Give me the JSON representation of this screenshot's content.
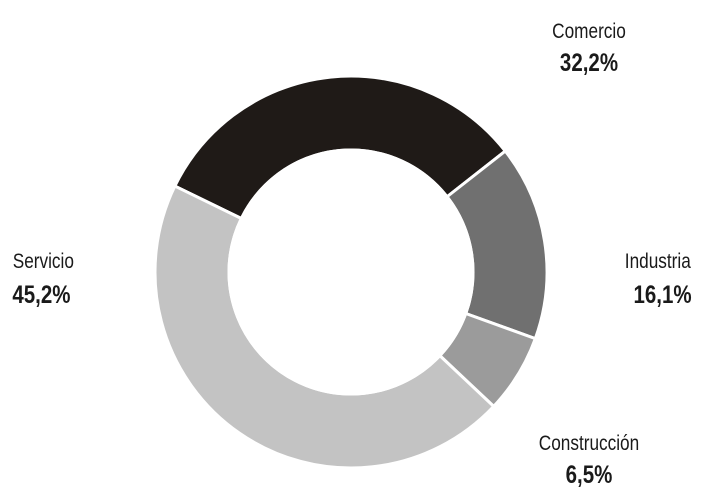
{
  "chart_data": {
    "type": "pie",
    "donut": true,
    "start_angle_deg": -154,
    "slices": [
      {
        "name": "Comercio",
        "value": 32.2,
        "label": "32,2%",
        "color": "#1f1a17",
        "label_anchor": "middle",
        "label_side": "top-right"
      },
      {
        "name": "Industria",
        "value": 16.1,
        "label": "16,1%",
        "color": "#707070",
        "label_anchor": "end",
        "label_side": "right"
      },
      {
        "name": "Construcción",
        "value": 6.5,
        "label": "6,5%",
        "color": "#9b9b9b",
        "label_anchor": "middle",
        "label_side": "bottom-right"
      },
      {
        "name": "Servicio",
        "value": 45.2,
        "label": "45,2%",
        "color": "#c3c3c3",
        "label_anchor": "start",
        "label_side": "left"
      }
    ]
  }
}
